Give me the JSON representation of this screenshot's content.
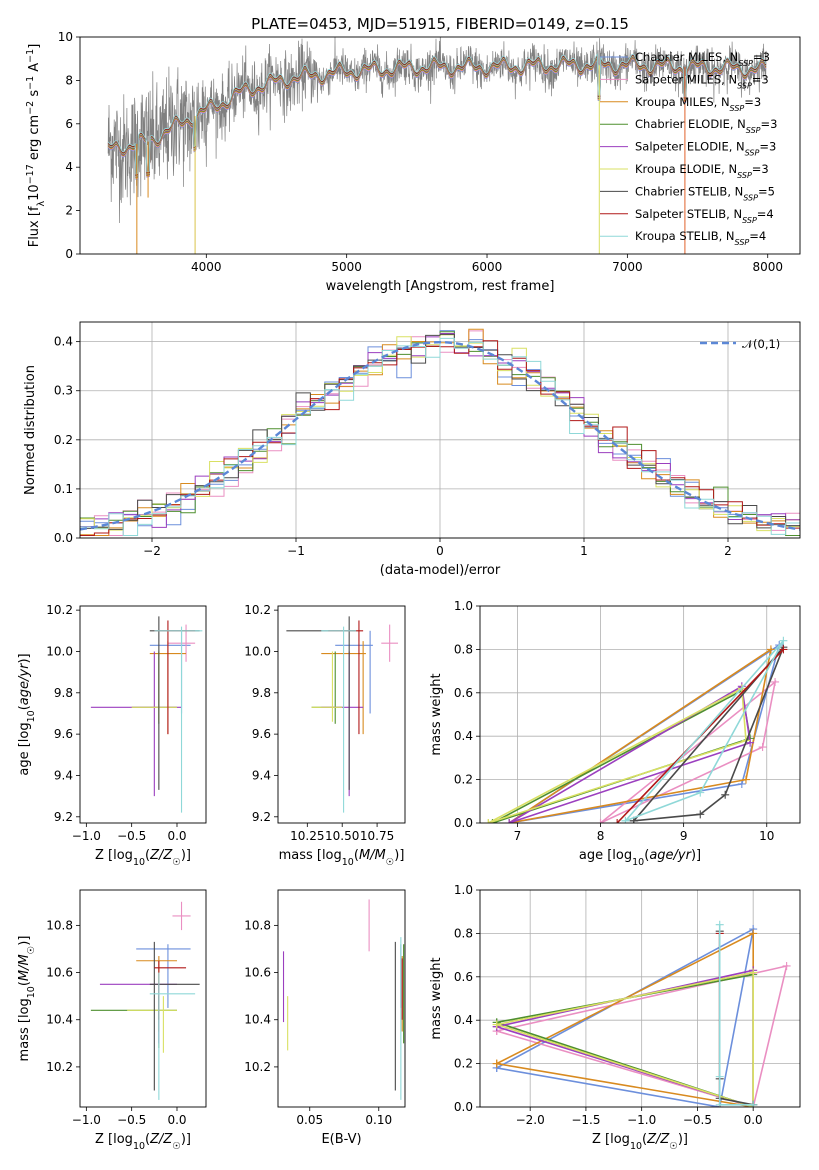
{
  "figure": {
    "title": "PLATE=0453, MJD=51915, FIBERID=0149, z=0.15"
  },
  "models": [
    {
      "name": "Chabrier MILES",
      "nssp": "3",
      "color": "#6c8fdc"
    },
    {
      "name": "Salpeter MILES",
      "nssp": "3",
      "color": "#ea8fc2"
    },
    {
      "name": "Kroupa MILES",
      "nssp": "3",
      "color": "#d88a1f"
    },
    {
      "name": "Chabrier ELODIE",
      "nssp": "3",
      "color": "#4e8f2f"
    },
    {
      "name": "Salpeter ELODIE",
      "nssp": "3",
      "color": "#9b3fbf"
    },
    {
      "name": "Kroupa ELODIE",
      "nssp": "3",
      "color": "#d9e063"
    },
    {
      "name": "Chabrier STELIB",
      "nssp": "5",
      "color": "#4a4a4a"
    },
    {
      "name": "Salpeter STELIB",
      "nssp": "4",
      "color": "#b01818"
    },
    {
      "name": "Kroupa STELIB",
      "nssp": "4",
      "color": "#8fd8d8"
    }
  ],
  "chart_data": [
    {
      "id": "spectrum",
      "type": "line",
      "xlabel": "wavelength [Angstrom, rest frame]",
      "ylabel": "Flux [f_λ 10^-17 erg cm^-2 s^-1 A^-1]",
      "xlim": [
        3100,
        8230
      ],
      "ylim": [
        0,
        10
      ],
      "xticks": [
        4000,
        5000,
        6000,
        7000,
        8000
      ],
      "yticks": [
        0,
        2,
        4,
        6,
        8,
        10
      ],
      "legend_loc": "upper-right",
      "grid": false,
      "data_series": {
        "name": "data",
        "color": "#808080",
        "x_range": [
          3300,
          7990
        ]
      },
      "continuum": {
        "x": [
          3300,
          3600,
          3700,
          3900,
          4000,
          4300,
          4600,
          5000,
          5500,
          6000,
          6500,
          7000,
          7500,
          7990
        ],
        "y": [
          4.8,
          5.2,
          5.6,
          6.3,
          6.6,
          7.6,
          8.1,
          8.4,
          8.6,
          8.6,
          8.7,
          8.7,
          8.6,
          8.5
        ]
      },
      "absorption_dips": [
        {
          "x": 3505,
          "to": 0
        },
        {
          "x": 3585,
          "to": 2.6
        },
        {
          "x": 3920,
          "to": 0
        },
        {
          "x": 6800,
          "to": 0
        },
        {
          "x": 7410,
          "to": 0
        }
      ]
    },
    {
      "id": "residuals",
      "type": "histogram",
      "xlabel": "(data-model)/error",
      "ylabel": "Normed distribution",
      "xlim": [
        -2.5,
        2.5
      ],
      "ylim": [
        0,
        0.44
      ],
      "xticks": [
        -2,
        -1,
        0,
        1,
        2
      ],
      "yticks": [
        0.0,
        0.1,
        0.2,
        0.3,
        0.4
      ],
      "grid": true,
      "legend_loc": "upper-right",
      "bin_width": 0.1,
      "reference": {
        "name": "𝒩(0,1)",
        "color": "#5b87d6",
        "mu": 0,
        "sigma": 1
      }
    },
    {
      "id": "age-vs-Z",
      "type": "errorbar",
      "xlabel": "Z [log₁₀(Z/Z☉)]",
      "ylabel": "age  [log₁₀(age/yr)]",
      "xlim": [
        -1.07,
        0.32
      ],
      "ylim": [
        9.17,
        10.22
      ],
      "xticks": [
        -1.0,
        -0.5,
        0.0
      ],
      "yticks": [
        9.2,
        9.4,
        9.6,
        9.8,
        10.0,
        10.2
      ],
      "grid": false,
      "points": [
        {
          "x": 0.05,
          "y": 10.03,
          "xlo": -0.3,
          "xhi": 0.15,
          "ylo": 9.7,
          "yhi": 10.1
        },
        {
          "x": 0.1,
          "y": 10.04,
          "xlo": -0.1,
          "xhi": 0.2,
          "ylo": 9.95,
          "yhi": 10.13
        },
        {
          "x": -0.1,
          "y": 9.99,
          "xlo": -0.3,
          "xhi": 0.1,
          "ylo": 9.6,
          "yhi": 10.05
        },
        {
          "x": -0.2,
          "y": 9.73,
          "xlo": -0.5,
          "xhi": 0.0,
          "ylo": 9.65,
          "yhi": 10.0
        },
        {
          "x": -0.25,
          "y": 9.73,
          "xlo": -0.95,
          "xhi": 0.05,
          "ylo": 9.3,
          "yhi": 10.0
        },
        {
          "x": -0.2,
          "y": 9.73,
          "xlo": -0.5,
          "xhi": 0.0,
          "ylo": 9.66,
          "yhi": 10.0
        },
        {
          "x": -0.2,
          "y": 10.1,
          "xlo": -0.3,
          "xhi": 0.25,
          "ylo": 9.33,
          "yhi": 10.17
        },
        {
          "x": -0.1,
          "y": 10.1,
          "xlo": -0.25,
          "xhi": 0.2,
          "ylo": 9.6,
          "yhi": 10.15
        },
        {
          "x": 0.05,
          "y": 10.1,
          "xlo": -0.25,
          "xhi": 0.28,
          "ylo": 9.22,
          "yhi": 10.12
        }
      ]
    },
    {
      "id": "age-vs-mass",
      "type": "errorbar",
      "xlabel": "mass [log₁₀(M/M☉)]",
      "xlim": [
        10.04,
        10.95
      ],
      "ylim": [
        9.17,
        10.22
      ],
      "xticks": [
        10.25,
        10.5,
        10.75
      ],
      "yticks": [
        9.2,
        9.4,
        9.6,
        9.8,
        10.0,
        10.2
      ],
      "grid": false,
      "points": [
        {
          "x": 10.7,
          "y": 10.03,
          "xlo": 10.45,
          "xhi": 10.72,
          "ylo": 9.7,
          "yhi": 10.1
        },
        {
          "x": 10.84,
          "y": 10.04,
          "xlo": 10.78,
          "xhi": 10.9,
          "ylo": 9.95,
          "yhi": 10.13
        },
        {
          "x": 10.65,
          "y": 9.99,
          "xlo": 10.35,
          "xhi": 10.67,
          "ylo": 9.6,
          "yhi": 10.05
        },
        {
          "x": 10.45,
          "y": 9.73,
          "xlo": 10.28,
          "xhi": 10.5,
          "ylo": 9.65,
          "yhi": 10.0
        },
        {
          "x": 10.55,
          "y": 9.73,
          "xlo": 10.35,
          "xhi": 10.65,
          "ylo": 9.3,
          "yhi": 10.0
        },
        {
          "x": 10.43,
          "y": 9.73,
          "xlo": 10.28,
          "xhi": 10.5,
          "ylo": 9.66,
          "yhi": 10.0
        },
        {
          "x": 10.55,
          "y": 10.1,
          "xlo": 10.1,
          "xhi": 10.6,
          "ylo": 9.33,
          "yhi": 10.17
        },
        {
          "x": 10.62,
          "y": 10.1,
          "xlo": 10.4,
          "xhi": 10.65,
          "ylo": 9.6,
          "yhi": 10.15
        },
        {
          "x": 10.51,
          "y": 10.1,
          "xlo": 10.35,
          "xhi": 10.6,
          "ylo": 9.22,
          "yhi": 10.12
        }
      ]
    },
    {
      "id": "weight-vs-age",
      "type": "line",
      "xlabel": "age  [log₁₀(age/yr)]",
      "ylabel": "mass weight",
      "xlim": [
        6.55,
        10.4
      ],
      "ylim": [
        0,
        1
      ],
      "xticks": [
        7,
        8,
        9,
        10
      ],
      "yticks": [
        0.0,
        0.2,
        0.4,
        0.6,
        0.8,
        1.0
      ],
      "grid": true,
      "series": [
        {
          "x": [
            6.9,
            9.7,
            10.15,
            6.9
          ],
          "y": [
            0.0,
            0.18,
            0.82,
            0.0
          ]
        },
        {
          "x": [
            8.0,
            9.95,
            10.1,
            8.0
          ],
          "y": [
            0.0,
            0.35,
            0.65,
            0.0
          ]
        },
        {
          "x": [
            6.9,
            9.75,
            10.05,
            6.9
          ],
          "y": [
            0.0,
            0.2,
            0.8,
            0.0
          ]
        },
        {
          "x": [
            6.7,
            9.7,
            9.8,
            6.7
          ],
          "y": [
            0.0,
            0.61,
            0.39,
            0.0
          ]
        },
        {
          "x": [
            6.9,
            9.7,
            9.8,
            6.9
          ],
          "y": [
            0.0,
            0.63,
            0.37,
            0.0
          ]
        },
        {
          "x": [
            6.65,
            9.7,
            9.75,
            6.65
          ],
          "y": [
            0.0,
            0.62,
            0.38,
            0.0
          ]
        },
        {
          "x": [
            8.4,
            9.2,
            9.5,
            10.2,
            8.4
          ],
          "y": [
            0.01,
            0.04,
            0.13,
            0.81,
            0.01
          ]
        },
        {
          "x": [
            8.2,
            10.2
          ],
          "y": [
            0.0,
            0.8
          ]
        },
        {
          "x": [
            8.3,
            9.2,
            10.2,
            8.3
          ],
          "y": [
            0.01,
            0.14,
            0.84,
            0.01
          ]
        }
      ]
    },
    {
      "id": "mass-vs-Z",
      "type": "errorbar",
      "xlabel": "Z [log₁₀(Z/Z☉)]",
      "ylabel": "mass [log₁₀(M/M☉)]",
      "xlim": [
        -1.07,
        0.32
      ],
      "ylim": [
        10.03,
        10.95
      ],
      "xticks": [
        -1.0,
        -0.5,
        0.0
      ],
      "yticks": [
        10.2,
        10.4,
        10.6,
        10.8
      ],
      "grid": false,
      "points": [
        {
          "x": -0.1,
          "y": 10.7,
          "xlo": -0.45,
          "xhi": 0.15,
          "ylo": 10.45,
          "yhi": 10.72
        },
        {
          "x": 0.05,
          "y": 10.84,
          "xlo": -0.05,
          "xhi": 0.15,
          "ylo": 10.78,
          "yhi": 10.9
        },
        {
          "x": -0.2,
          "y": 10.65,
          "xlo": -0.45,
          "xhi": 0.0,
          "ylo": 10.35,
          "yhi": 10.67
        },
        {
          "x": -0.2,
          "y": 10.44,
          "xlo": -0.95,
          "xhi": 0.0,
          "ylo": 10.28,
          "yhi": 10.5
        },
        {
          "x": -0.2,
          "y": 10.55,
          "xlo": -0.85,
          "xhi": 0.0,
          "ylo": 10.3,
          "yhi": 10.55
        },
        {
          "x": -0.15,
          "y": 10.44,
          "xlo": -0.55,
          "xhi": 0.0,
          "ylo": 10.26,
          "yhi": 10.5
        },
        {
          "x": -0.25,
          "y": 10.55,
          "xlo": -0.3,
          "xhi": 0.25,
          "ylo": 10.1,
          "yhi": 10.73
        },
        {
          "x": -0.2,
          "y": 10.62,
          "xlo": -0.25,
          "xhi": 0.1,
          "ylo": 10.4,
          "yhi": 10.65
        },
        {
          "x": -0.2,
          "y": 10.51,
          "xlo": -0.3,
          "xhi": 0.2,
          "ylo": 10.06,
          "yhi": 10.6
        }
      ]
    },
    {
      "id": "mass-vs-EBV",
      "type": "errorbar",
      "xlabel": "E(B-V)",
      "xlim": [
        0.027,
        0.119
      ],
      "ylim": [
        10.03,
        10.95
      ],
      "xticks": [
        0.05,
        0.1
      ],
      "yticks": [
        10.2,
        10.4,
        10.6,
        10.8
      ],
      "grid": false,
      "points": [
        {
          "x": 0.116,
          "y": 10.7,
          "ylo": 10.45,
          "yhi": 10.72
        },
        {
          "x": 0.093,
          "y": 10.84,
          "ylo": 10.69,
          "yhi": 10.91
        },
        {
          "x": 0.117,
          "y": 10.65,
          "ylo": 10.35,
          "yhi": 10.67
        },
        {
          "x": 0.118,
          "y": 10.6,
          "ylo": 10.3,
          "yhi": 10.72
        },
        {
          "x": 0.031,
          "y": 10.55,
          "ylo": 10.39,
          "yhi": 10.69
        },
        {
          "x": 0.034,
          "y": 10.44,
          "ylo": 10.27,
          "yhi": 10.5
        },
        {
          "x": 0.112,
          "y": 10.55,
          "ylo": 10.1,
          "yhi": 10.73
        },
        {
          "x": 0.117,
          "y": 10.62,
          "ylo": 10.4,
          "yhi": 10.66
        },
        {
          "x": 0.116,
          "y": 10.51,
          "ylo": 10.06,
          "yhi": 10.75
        }
      ]
    },
    {
      "id": "weight-vs-Z",
      "type": "line",
      "xlabel": "Z [log₁₀(Z/Z☉)]",
      "ylabel": "mass weight",
      "xlim": [
        -2.45,
        0.42
      ],
      "ylim": [
        0,
        1
      ],
      "xticks": [
        -2.0,
        -1.5,
        -1.0,
        -0.5,
        0.0
      ],
      "yticks": [
        0.0,
        0.2,
        0.4,
        0.6,
        0.8,
        1.0
      ],
      "grid": true,
      "series": [
        {
          "x": [
            -2.3,
            0.0,
            -0.3,
            -2.3
          ],
          "y": [
            0.18,
            0.82,
            0.0,
            0.18
          ]
        },
        {
          "x": [
            -2.3,
            0.3,
            0.0,
            -2.3
          ],
          "y": [
            0.35,
            0.65,
            0.0,
            0.35
          ]
        },
        {
          "x": [
            -2.3,
            0.0,
            0.0,
            -2.3
          ],
          "y": [
            0.2,
            0.8,
            0.0,
            0.2
          ]
        },
        {
          "x": [
            -2.3,
            0.0,
            0.0,
            -2.3
          ],
          "y": [
            0.39,
            0.61,
            0.0,
            0.39
          ]
        },
        {
          "x": [
            -2.3,
            0.0,
            0.0,
            -2.3
          ],
          "y": [
            0.37,
            0.63,
            0.0,
            0.37
          ]
        },
        {
          "x": [
            -2.3,
            0.0,
            0.0,
            -2.3
          ],
          "y": [
            0.38,
            0.62,
            0.0,
            0.38
          ]
        },
        {
          "x": [
            -0.3,
            -0.3,
            -0.3,
            0.0,
            0.0
          ],
          "y": [
            0.81,
            0.13,
            0.04,
            0.01,
            0.01
          ]
        },
        {
          "x": [
            -0.3,
            -0.3
          ],
          "y": [
            0.8,
            0.0
          ]
        },
        {
          "x": [
            -0.3,
            -0.3,
            -0.3,
            0.0
          ],
          "y": [
            0.84,
            0.14,
            0.01,
            0.01
          ]
        }
      ]
    }
  ]
}
